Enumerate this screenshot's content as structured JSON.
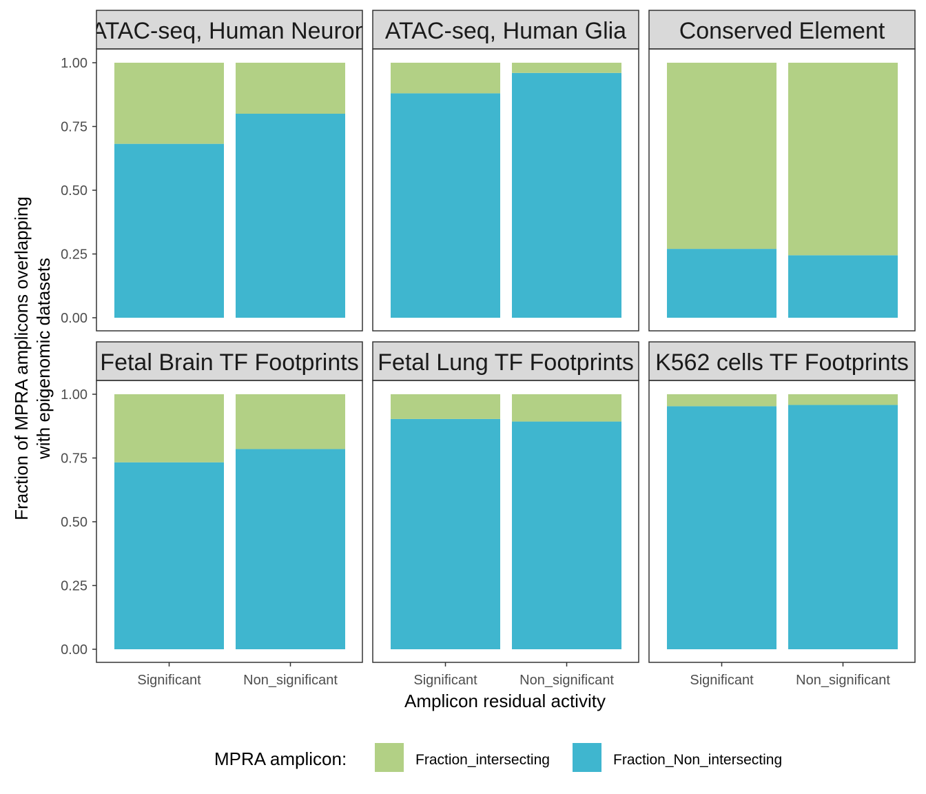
{
  "chart_data": {
    "type": "bar",
    "stacked": true,
    "facets": [
      {
        "title": "ATAC-seq, Human Neuron",
        "values": {
          "Fraction_Non_intersecting": [
            0.682,
            0.8
          ],
          "Fraction_intersecting": [
            0.318,
            0.2
          ]
        }
      },
      {
        "title": "ATAC-seq, Human Glia",
        "values": {
          "Fraction_Non_intersecting": [
            0.88,
            0.96
          ],
          "Fraction_intersecting": [
            0.12,
            0.04
          ]
        }
      },
      {
        "title": "Conserved Element",
        "values": {
          "Fraction_Non_intersecting": [
            0.27,
            0.245
          ],
          "Fraction_intersecting": [
            0.73,
            0.755
          ]
        }
      },
      {
        "title": "Fetal Brain TF Footprints",
        "values": {
          "Fraction_Non_intersecting": [
            0.733,
            0.785
          ],
          "Fraction_intersecting": [
            0.267,
            0.215
          ]
        }
      },
      {
        "title": "Fetal Lung TF Footprints",
        "values": {
          "Fraction_Non_intersecting": [
            0.903,
            0.893
          ],
          "Fraction_intersecting": [
            0.097,
            0.107
          ]
        }
      },
      {
        "title": "K562 cells TF Footprints",
        "values": {
          "Fraction_Non_intersecting": [
            0.953,
            0.958
          ],
          "Fraction_intersecting": [
            0.047,
            0.042
          ]
        }
      }
    ],
    "categories": [
      "Significant",
      "Non_significant"
    ],
    "series": [
      {
        "name": "Fraction_intersecting",
        "color": "#b2d085"
      },
      {
        "name": "Fraction_Non_intersecting",
        "color": "#3fb6cf"
      }
    ],
    "yticks": [
      "0.00",
      "0.25",
      "0.50",
      "0.75",
      "1.00"
    ],
    "ylim": [
      0,
      1
    ],
    "xlabel": "Amplicon residual activity",
    "ylabel_lines": [
      "Fraction of MPRA amplicons overlapping",
      "with epigenomic datasets"
    ],
    "legend_title": "MPRA amplicon:",
    "legend_position": "bottom",
    "grid": false
  }
}
